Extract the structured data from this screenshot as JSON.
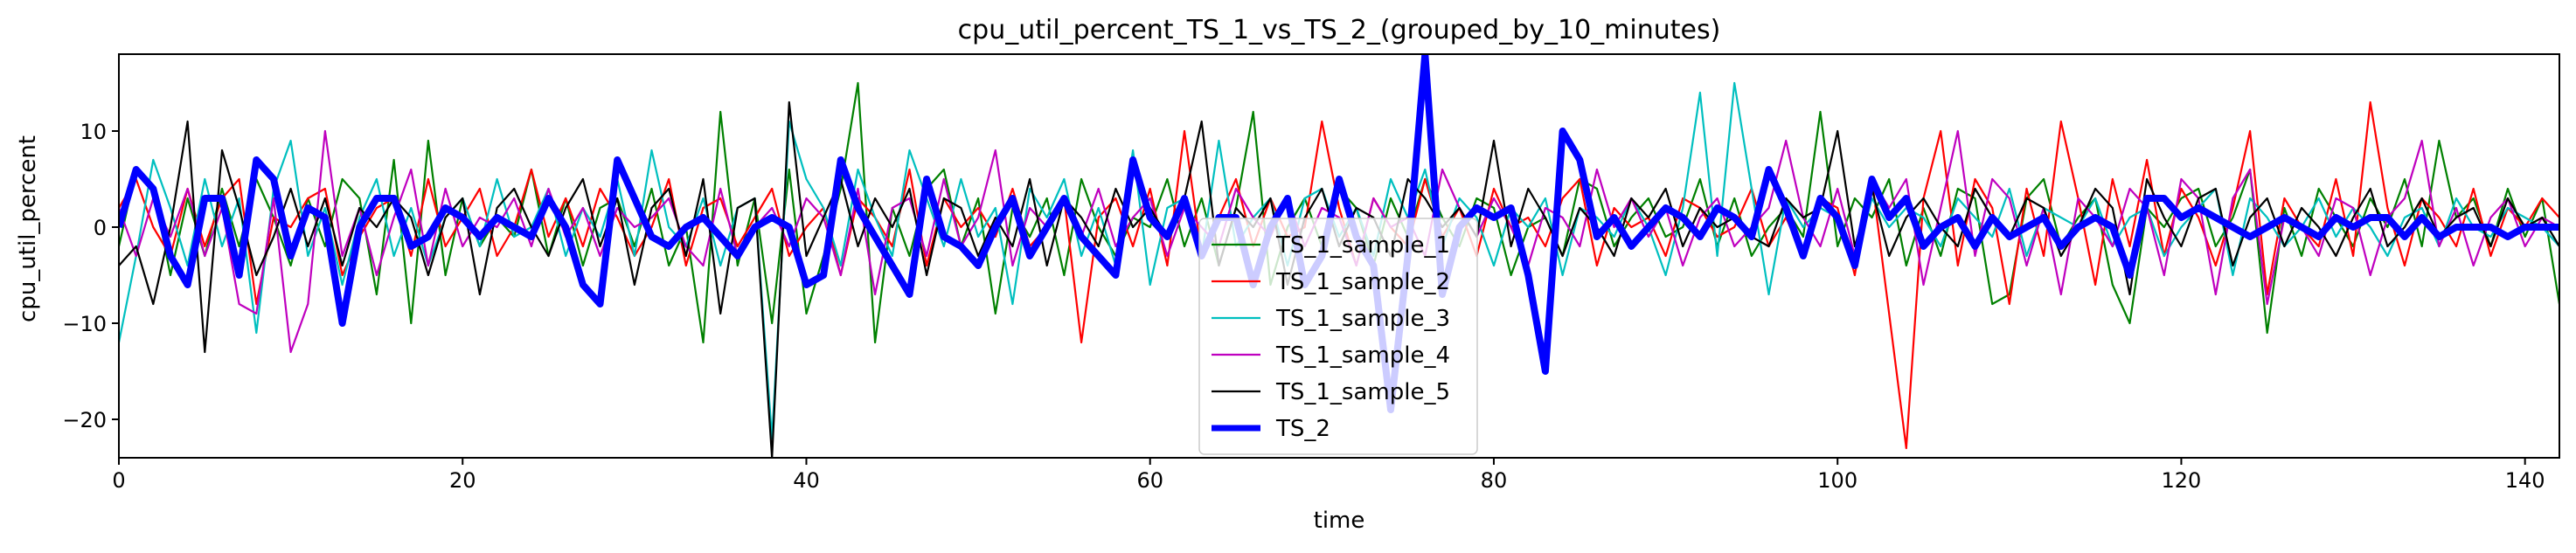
{
  "chart_data": {
    "type": "line",
    "title": "cpu_util_percent_TS_1_vs_TS_2_(grouped_by_10_minutes)",
    "xlabel": "time",
    "ylabel": "cpu_util_percent",
    "xlim": [
      0,
      142
    ],
    "ylim": [
      -24,
      18
    ],
    "xticks": [
      0,
      20,
      40,
      60,
      80,
      100,
      120,
      140
    ],
    "yticks": [
      -20,
      -10,
      0,
      10
    ],
    "grid": false,
    "legend": "center",
    "series": [
      {
        "name": "TS_1_sample_1",
        "color": "#008000",
        "values": [
          -2,
          6,
          4,
          -5,
          3,
          -3,
          4,
          -2,
          5,
          1,
          -4,
          3,
          -2,
          5,
          3,
          -7,
          7,
          -10,
          9,
          -5,
          3,
          -2,
          1,
          -1,
          6,
          -3,
          3,
          -4,
          2,
          3,
          -2,
          4,
          -4,
          0,
          -12,
          12,
          -4,
          3,
          -10,
          6,
          -9,
          -3,
          4,
          15,
          -12,
          2,
          -3,
          4,
          6,
          -2,
          3,
          -9,
          2,
          -1,
          3,
          -5,
          5,
          0,
          -3,
          1,
          0,
          5,
          -2,
          3,
          -4,
          2,
          12,
          -6,
          0,
          3,
          -2,
          4,
          2,
          -4,
          3,
          -1,
          5,
          1,
          -2,
          3,
          2,
          -5,
          0,
          1,
          -3,
          5,
          4,
          -2,
          1,
          3,
          -1,
          0,
          5,
          -2,
          3,
          -3,
          0,
          2,
          -1,
          12,
          -2,
          3,
          1,
          5,
          -4,
          2,
          -3,
          4,
          3,
          -8,
          -7,
          3,
          5,
          -2,
          1,
          3,
          -6,
          -10,
          2,
          0,
          3,
          4,
          -2,
          1,
          6,
          -11,
          2,
          -3,
          4,
          1,
          -2,
          3,
          0,
          5,
          -2,
          9,
          1,
          3,
          -2,
          4,
          -1,
          3,
          -8,
          2
        ]
      },
      {
        "name": "TS_1_sample_2",
        "color": "#ff0000",
        "values": [
          2,
          5,
          0,
          -3,
          4,
          -2,
          3,
          5,
          -8,
          1,
          0,
          3,
          4,
          -5,
          -1,
          2,
          3,
          -3,
          5,
          -2,
          1,
          4,
          -3,
          0,
          6,
          -1,
          3,
          -2,
          4,
          1,
          -3,
          0,
          5,
          -4,
          2,
          3,
          -2,
          1,
          4,
          -3,
          0,
          2,
          -5,
          3,
          1,
          -2,
          6,
          -4,
          3,
          0,
          2,
          -1,
          4,
          -2,
          0,
          3,
          -12,
          1,
          3,
          -2,
          4,
          -4,
          10,
          -3,
          1,
          5,
          -2,
          3,
          -1,
          0,
          11,
          2,
          -4,
          3,
          0,
          -2,
          5,
          -1,
          2,
          -3,
          4,
          0,
          1,
          -2,
          3,
          5,
          -4,
          2,
          0,
          1,
          -3,
          3,
          2,
          -1,
          0,
          4,
          -2,
          1,
          -3,
          3,
          2,
          -5,
          5,
          -9,
          -23,
          3,
          10,
          -4,
          5,
          2,
          -8,
          4,
          -3,
          11,
          3,
          -6,
          5,
          -2,
          7,
          -3,
          4,
          1,
          -4,
          2,
          10,
          -7,
          3,
          0,
          -2,
          5,
          -3,
          13,
          2,
          -4,
          3,
          1,
          -2,
          4,
          -3,
          2,
          0,
          3,
          1
        ]
      },
      {
        "name": "TS_1_sample_3",
        "color": "#00bfbf",
        "values": [
          -12,
          -3,
          7,
          2,
          -4,
          5,
          -2,
          3,
          -11,
          4,
          9,
          -3,
          2,
          -6,
          1,
          5,
          -3,
          2,
          -4,
          1,
          3,
          -2,
          5,
          -1,
          0,
          4,
          -3,
          2,
          -1,
          5,
          -3,
          8,
          0,
          -2,
          3,
          -4,
          2,
          3,
          -22,
          11,
          5,
          2,
          -4,
          6,
          1,
          -3,
          8,
          3,
          -2,
          5,
          -1,
          2,
          -8,
          4,
          1,
          5,
          -3,
          2,
          -4,
          8,
          -6,
          2,
          3,
          -3,
          9,
          -2,
          1,
          3,
          -4,
          3,
          4,
          -1,
          2,
          -3,
          5,
          1,
          6,
          -2,
          3,
          1,
          -4,
          2,
          0,
          3,
          -5,
          2,
          1,
          -1,
          3,
          0,
          -5,
          2,
          14,
          -3,
          15,
          4,
          -7,
          3,
          0,
          2,
          1,
          -4,
          3,
          0,
          2,
          1,
          -2,
          3,
          1,
          -1,
          4,
          -3,
          2,
          1,
          0,
          3,
          -2,
          1,
          2,
          -3,
          0,
          2,
          4,
          -5,
          3,
          1,
          -2,
          0,
          3,
          -1,
          2,
          0,
          -3,
          1,
          2,
          -2,
          3,
          0,
          -1,
          2,
          1,
          0,
          -2
        ]
      },
      {
        "name": "TS_1_sample_4",
        "color": "#bf00bf",
        "values": [
          2,
          -3,
          3,
          -1,
          4,
          -3,
          2,
          -8,
          -9,
          3,
          -13,
          -8,
          10,
          -3,
          2,
          -5,
          1,
          6,
          -4,
          4,
          -2,
          1,
          0,
          3,
          -2,
          4,
          -1,
          2,
          -3,
          2,
          0,
          1,
          3,
          -2,
          -4,
          4,
          -3,
          0,
          2,
          -2,
          3,
          1,
          -5,
          4,
          -7,
          2,
          3,
          -3,
          5,
          -2,
          1,
          8,
          -4,
          2,
          0,
          3,
          -1,
          4,
          -2,
          1,
          3,
          -3,
          2,
          0,
          -2,
          4,
          1,
          -1,
          3,
          -2,
          2,
          1,
          -4,
          3,
          0,
          1,
          -3,
          6,
          2,
          -1,
          3,
          0,
          -4,
          2,
          1,
          -2,
          6,
          0,
          3,
          -1,
          2,
          -4,
          1,
          3,
          -2,
          0,
          2,
          9,
          1,
          -2,
          4,
          -3,
          5,
          2,
          5,
          -6,
          2,
          10,
          -3,
          5,
          3,
          -4,
          2,
          -7,
          3,
          1,
          -2,
          4,
          2,
          -5,
          5,
          3,
          -7,
          3,
          6,
          -8,
          1,
          0,
          -3,
          3,
          2,
          -5,
          1,
          3,
          9,
          -2,
          2,
          -4,
          1,
          3,
          -2,
          1,
          0
        ]
      },
      {
        "name": "TS_1_sample_5",
        "color": "#000000",
        "values": [
          -4,
          -2,
          -8,
          0,
          11,
          -13,
          8,
          2,
          -5,
          -1,
          4,
          -2,
          3,
          -4,
          2,
          0,
          3,
          1,
          -5,
          1,
          3,
          -7,
          2,
          4,
          0,
          -3,
          2,
          5,
          -2,
          3,
          -6,
          2,
          4,
          -3,
          5,
          -9,
          2,
          3,
          -24,
          13,
          -3,
          1,
          5,
          -2,
          3,
          0,
          4,
          -5,
          3,
          2,
          -3,
          1,
          -2,
          5,
          -4,
          3,
          1,
          -2,
          4,
          0,
          2,
          -1,
          3,
          11,
          -4,
          2,
          0,
          3,
          -6,
          1,
          4,
          -2,
          2,
          1,
          -3,
          5,
          3,
          0,
          2,
          -1,
          9,
          -2,
          4,
          1,
          -3,
          2,
          0,
          -3,
          3,
          1,
          4,
          -2,
          2,
          0,
          1,
          -1,
          -2,
          3,
          1,
          2,
          10,
          -2,
          4,
          -3,
          1,
          3,
          0,
          -2,
          4,
          1,
          -1,
          3,
          2,
          -3,
          0,
          4,
          2,
          -7,
          5,
          1,
          -2,
          3,
          4,
          -4,
          1,
          3,
          -2,
          2,
          0,
          -3,
          1,
          4,
          -2,
          0,
          3,
          -1,
          1,
          2,
          -2,
          3,
          0,
          1,
          -2
        ]
      },
      {
        "name": "TS_2",
        "color": "#0000ff",
        "values": [
          0,
          6,
          4,
          -3,
          -6,
          3,
          3,
          -5,
          7,
          5,
          -3,
          2,
          1,
          -10,
          0,
          3,
          3,
          -2,
          -1,
          2,
          1,
          -1,
          1,
          0,
          -1,
          3,
          0,
          -6,
          -8,
          7,
          3,
          -1,
          -2,
          0,
          1,
          -1,
          -3,
          0,
          1,
          0,
          -6,
          -5,
          7,
          2,
          -1,
          -4,
          -7,
          5,
          -1,
          -2,
          -4,
          0,
          3,
          -3,
          0,
          3,
          -1,
          -3,
          -5,
          7,
          1,
          -1,
          3,
          -3,
          1,
          1,
          -6,
          0,
          3,
          -6,
          -3,
          5,
          -1,
          -4,
          -19,
          -3,
          18,
          -7,
          0,
          2,
          1,
          2,
          -5,
          -15,
          10,
          7,
          -1,
          1,
          -2,
          0,
          2,
          1,
          -1,
          2,
          1,
          -1,
          6,
          2,
          -3,
          3,
          1,
          -4,
          5,
          1,
          3,
          -2,
          0,
          1,
          -2,
          1,
          -1,
          0,
          1,
          -2,
          0,
          1,
          0,
          -5,
          3,
          3,
          1,
          2,
          1,
          0,
          -1,
          0,
          1,
          0,
          -1,
          1,
          0,
          1,
          1,
          -1,
          1,
          -1,
          0,
          0,
          0,
          -1,
          0,
          0,
          0
        ],
        "bold": true
      }
    ]
  }
}
